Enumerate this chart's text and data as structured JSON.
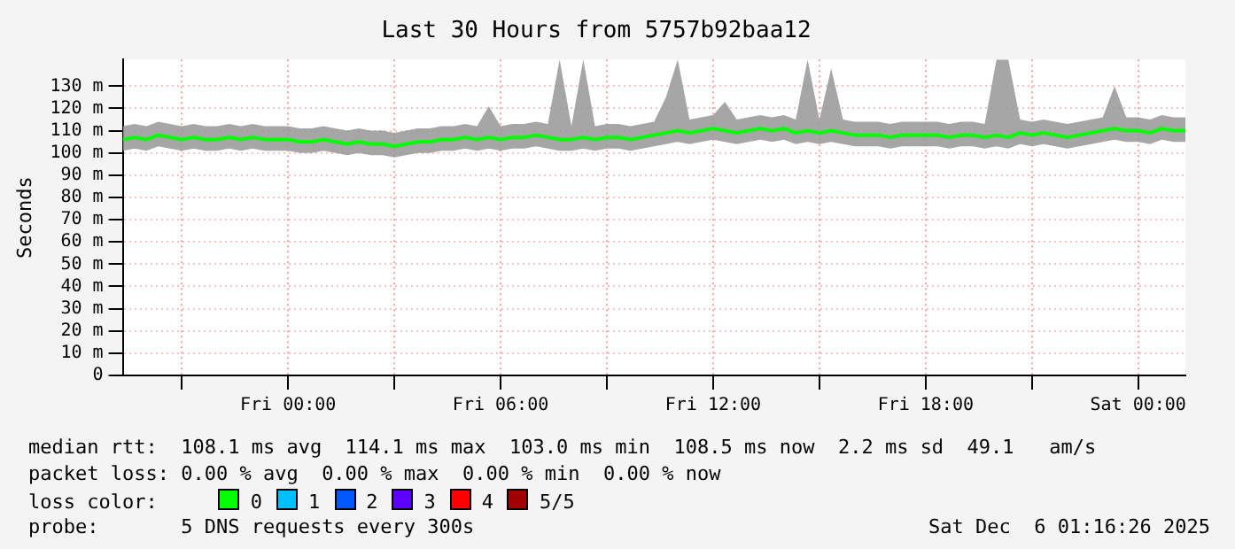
{
  "chart_data": {
    "type": "line",
    "title": "Last 30 Hours from 5757b92baa12",
    "ylabel": "Seconds",
    "legend_title": "loss color:",
    "legend": "bottom",
    "grid": true,
    "marker": "none",
    "line_style": "solid",
    "xlim": [
      "2025-12-04T19:20",
      "2025-12-06T01:20"
    ],
    "xticks": [
      {
        "value": "2025-12-04T21:00",
        "label": null
      },
      {
        "value": "2025-12-05T00:00",
        "label": "Fri 00:00"
      },
      {
        "value": "2025-12-05T03:00",
        "label": null
      },
      {
        "value": "2025-12-05T06:00",
        "label": "Fri 06:00"
      },
      {
        "value": "2025-12-05T09:00",
        "label": null
      },
      {
        "value": "2025-12-05T12:00",
        "label": "Fri 12:00"
      },
      {
        "value": "2025-12-05T15:00",
        "label": null
      },
      {
        "value": "2025-12-05T18:00",
        "label": "Fri 18:00"
      },
      {
        "value": "2025-12-05T21:00",
        "label": null
      },
      {
        "value": "2025-12-06T00:00",
        "label": "Sat 00:00"
      }
    ],
    "ylim": [
      0,
      142
    ],
    "yticks": [
      0,
      {
        "value": 10,
        "label": "10 m"
      },
      {
        "value": 20,
        "label": "20 m"
      },
      {
        "value": 30,
        "label": "30 m"
      },
      {
        "value": 40,
        "label": "40 m"
      },
      {
        "value": 50,
        "label": "50 m"
      },
      {
        "value": 60,
        "label": "60 m"
      },
      {
        "value": 70,
        "label": "70 m"
      },
      {
        "value": 80,
        "label": "80 m"
      },
      {
        "value": 90,
        "label": "90 m"
      },
      {
        "value": 100,
        "label": "100 m"
      },
      {
        "value": 110,
        "label": "110 m"
      },
      {
        "value": 120,
        "label": "120 m"
      },
      {
        "value": 130,
        "label": "130 m"
      }
    ],
    "x": [
      "2025-12-04T19:20",
      "2025-12-04T19:40",
      "2025-12-04T20:00",
      "2025-12-04T20:20",
      "2025-12-04T20:40",
      "2025-12-04T21:00",
      "2025-12-04T21:20",
      "2025-12-04T21:40",
      "2025-12-04T22:00",
      "2025-12-04T22:20",
      "2025-12-04T22:40",
      "2025-12-04T23:00",
      "2025-12-04T23:20",
      "2025-12-04T23:40",
      "2025-12-05T00:00",
      "2025-12-05T00:20",
      "2025-12-05T00:40",
      "2025-12-05T01:00",
      "2025-12-05T01:20",
      "2025-12-05T01:40",
      "2025-12-05T02:00",
      "2025-12-05T02:20",
      "2025-12-05T02:40",
      "2025-12-05T03:00",
      "2025-12-05T03:20",
      "2025-12-05T03:40",
      "2025-12-05T04:00",
      "2025-12-05T04:20",
      "2025-12-05T04:40",
      "2025-12-05T05:00",
      "2025-12-05T05:20",
      "2025-12-05T05:40",
      "2025-12-05T06:00",
      "2025-12-05T06:20",
      "2025-12-05T06:40",
      "2025-12-05T07:00",
      "2025-12-05T07:20",
      "2025-12-05T07:40",
      "2025-12-05T08:00",
      "2025-12-05T08:20",
      "2025-12-05T08:40",
      "2025-12-05T09:00",
      "2025-12-05T09:20",
      "2025-12-05T09:40",
      "2025-12-05T10:00",
      "2025-12-05T10:20",
      "2025-12-05T10:40",
      "2025-12-05T11:00",
      "2025-12-05T11:20",
      "2025-12-05T11:40",
      "2025-12-05T12:00",
      "2025-12-05T12:20",
      "2025-12-05T12:40",
      "2025-12-05T13:00",
      "2025-12-05T13:20",
      "2025-12-05T13:40",
      "2025-12-05T14:00",
      "2025-12-05T14:20",
      "2025-12-05T14:40",
      "2025-12-05T15:00",
      "2025-12-05T15:20",
      "2025-12-05T15:40",
      "2025-12-05T16:00",
      "2025-12-05T16:20",
      "2025-12-05T16:40",
      "2025-12-05T17:00",
      "2025-12-05T17:20",
      "2025-12-05T17:40",
      "2025-12-05T18:00",
      "2025-12-05T18:20",
      "2025-12-05T18:40",
      "2025-12-05T19:00",
      "2025-12-05T19:20",
      "2025-12-05T19:40",
      "2025-12-05T20:00",
      "2025-12-05T20:20",
      "2025-12-05T20:40",
      "2025-12-05T21:00",
      "2025-12-05T21:20",
      "2025-12-05T21:40",
      "2025-12-05T22:00",
      "2025-12-05T22:20",
      "2025-12-05T22:40",
      "2025-12-05T23:00",
      "2025-12-05T23:20",
      "2025-12-05T23:40",
      "2025-12-06T00:00",
      "2025-12-06T00:20",
      "2025-12-06T00:40",
      "2025-12-06T01:00",
      "2025-12-06T01:20"
    ],
    "series": [
      {
        "name": "0",
        "color": "#00ff00",
        "values": [
          106,
          107,
          106,
          108,
          107,
          106,
          107,
          106,
          106,
          107,
          106,
          107,
          106,
          106,
          106,
          105,
          105,
          106,
          105,
          104,
          105,
          104,
          104,
          103,
          104,
          105,
          105,
          106,
          106,
          107,
          106,
          107,
          106,
          107,
          107,
          108,
          107,
          106,
          106,
          107,
          106,
          107,
          107,
          106,
          107,
          108,
          109,
          110,
          109,
          110,
          111,
          110,
          109,
          110,
          111,
          110,
          111,
          109,
          110,
          109,
          110,
          109,
          108,
          108,
          108,
          107,
          108,
          108,
          108,
          108,
          107,
          108,
          108,
          107,
          108,
          107,
          109,
          108,
          109,
          108,
          107,
          108,
          109,
          110,
          111,
          110,
          110,
          109,
          111,
          110,
          110
        ],
        "lower": [
          101,
          102,
          101,
          103,
          102,
          101,
          102,
          101,
          101,
          102,
          101,
          102,
          101,
          101,
          101,
          100,
          100,
          101,
          100,
          99,
          100,
          99,
          99,
          98,
          99,
          100,
          100,
          101,
          101,
          102,
          101,
          102,
          101,
          102,
          102,
          103,
          102,
          101,
          101,
          102,
          101,
          102,
          102,
          101,
          102,
          103,
          104,
          105,
          104,
          105,
          106,
          105,
          104,
          105,
          106,
          105,
          106,
          104,
          105,
          104,
          105,
          104,
          103,
          103,
          103,
          102,
          103,
          103,
          103,
          103,
          102,
          103,
          103,
          102,
          103,
          102,
          104,
          103,
          104,
          103,
          102,
          103,
          104,
          105,
          106,
          105,
          105,
          104,
          106,
          105,
          105
        ],
        "upper": [
          112,
          113,
          112,
          114,
          113,
          112,
          113,
          112,
          112,
          113,
          112,
          113,
          112,
          112,
          112,
          111,
          111,
          112,
          111,
          110,
          111,
          110,
          110,
          109,
          110,
          111,
          111,
          112,
          112,
          113,
          112,
          121,
          112,
          113,
          113,
          114,
          113,
          142,
          112,
          142,
          112,
          113,
          113,
          112,
          113,
          114,
          125,
          142,
          115,
          116,
          117,
          123,
          115,
          116,
          117,
          116,
          117,
          115,
          142,
          115,
          138,
          115,
          114,
          114,
          114,
          113,
          114,
          114,
          114,
          114,
          113,
          114,
          114,
          113,
          142,
          142,
          115,
          114,
          115,
          114,
          113,
          114,
          115,
          116,
          130,
          116,
          116,
          115,
          117,
          116,
          116
        ]
      },
      {
        "name": "1",
        "color": "#00bfff",
        "values": [
          null,
          null,
          null,
          null,
          null,
          null,
          null,
          null,
          null,
          null,
          null,
          null,
          null,
          null,
          null,
          null,
          null,
          null,
          null,
          null,
          null,
          null,
          null,
          null,
          null,
          null,
          null,
          null,
          null,
          null,
          null,
          null,
          null,
          null,
          null,
          null,
          null,
          null,
          null,
          null,
          null,
          null,
          null,
          null,
          null,
          null,
          null,
          null,
          null,
          null,
          null,
          null,
          null,
          null,
          null,
          null,
          null,
          null,
          null,
          null,
          null,
          null,
          null,
          null,
          null,
          null,
          null,
          null,
          null,
          null,
          null,
          null,
          null,
          null,
          null,
          null,
          null,
          null,
          null,
          null,
          null,
          null,
          null,
          null,
          null,
          null,
          null,
          null,
          null,
          null,
          null
        ]
      },
      {
        "name": "2",
        "color": "#0059ff",
        "values": [
          null,
          null,
          null,
          null,
          null,
          null,
          null,
          null,
          null,
          null,
          null,
          null,
          null,
          null,
          null,
          null,
          null,
          null,
          null,
          null,
          null,
          null,
          null,
          null,
          null,
          null,
          null,
          null,
          null,
          null,
          null,
          null,
          null,
          null,
          null,
          null,
          null,
          null,
          null,
          null,
          null,
          null,
          null,
          null,
          null,
          null,
          null,
          null,
          null,
          null,
          null,
          null,
          null,
          null,
          null,
          null,
          null,
          null,
          null,
          null,
          null,
          null,
          null,
          null,
          null,
          null,
          null,
          null,
          null,
          null,
          null,
          null,
          null,
          null,
          null,
          null,
          null,
          null,
          null,
          null,
          null,
          null,
          null,
          null,
          null,
          null,
          null,
          null,
          null,
          null,
          null
        ]
      },
      {
        "name": "3",
        "color": "#5e00ff",
        "values": [
          null,
          null,
          null,
          null,
          null,
          null,
          null,
          null,
          null,
          null,
          null,
          null,
          null,
          null,
          null,
          null,
          null,
          null,
          null,
          null,
          null,
          null,
          null,
          null,
          null,
          null,
          null,
          null,
          null,
          null,
          null,
          null,
          null,
          null,
          null,
          null,
          null,
          null,
          null,
          null,
          null,
          null,
          null,
          null,
          null,
          null,
          null,
          null,
          null,
          null,
          null,
          null,
          null,
          null,
          null,
          null,
          null,
          null,
          null,
          null,
          null,
          null,
          null,
          null,
          null,
          null,
          null,
          null,
          null,
          null,
          null,
          null,
          null,
          null,
          null,
          null,
          null,
          null,
          null,
          null,
          null,
          null,
          null,
          null,
          null,
          null,
          null,
          null,
          null,
          null,
          null
        ]
      },
      {
        "name": "4",
        "color": "#ff0000",
        "values": [
          null,
          null,
          null,
          null,
          null,
          null,
          null,
          null,
          null,
          null,
          null,
          null,
          null,
          null,
          null,
          null,
          null,
          null,
          null,
          null,
          null,
          null,
          null,
          null,
          null,
          null,
          null,
          null,
          null,
          null,
          null,
          null,
          null,
          null,
          null,
          null,
          null,
          null,
          null,
          null,
          null,
          null,
          null,
          null,
          null,
          null,
          null,
          null,
          null,
          null,
          null,
          null,
          null,
          null,
          null,
          null,
          null,
          null,
          null,
          null,
          null,
          null,
          null,
          null,
          null,
          null,
          null,
          null,
          null,
          null,
          null,
          null,
          null,
          null,
          null,
          null,
          null,
          null,
          null,
          null,
          null,
          null,
          null,
          null,
          null,
          null,
          null,
          null,
          null,
          null,
          null
        ]
      },
      {
        "name": "5/5",
        "color": "#a00000",
        "values": [
          null,
          null,
          null,
          null,
          null,
          null,
          null,
          null,
          null,
          null,
          null,
          null,
          null,
          null,
          null,
          null,
          null,
          null,
          null,
          null,
          null,
          null,
          null,
          null,
          null,
          null,
          null,
          null,
          null,
          null,
          null,
          null,
          null,
          null,
          null,
          null,
          null,
          null,
          null,
          null,
          null,
          null,
          null,
          null,
          null,
          null,
          null,
          null,
          null,
          null,
          null,
          null,
          null,
          null,
          null,
          null,
          null,
          null,
          null,
          null,
          null,
          null,
          null,
          null,
          null,
          null,
          null,
          null,
          null,
          null,
          null,
          null,
          null,
          null,
          null,
          null,
          null,
          null,
          null,
          null,
          null,
          null,
          null,
          null,
          null,
          null,
          null,
          null,
          null,
          null,
          null
        ]
      }
    ],
    "annotations": [
      "median rtt:  108.1 ms avg  114.1 ms max  103.0 ms min  108.5 ms now  2.2 ms sd  49.1   am/s",
      "packet loss: 0.00 % avg  0.00 % max  0.00 % min  0.00 % now",
      "probe:       5 DNS requests every 300s",
      "Sat Dec  6 01:16:26 2025"
    ]
  }
}
